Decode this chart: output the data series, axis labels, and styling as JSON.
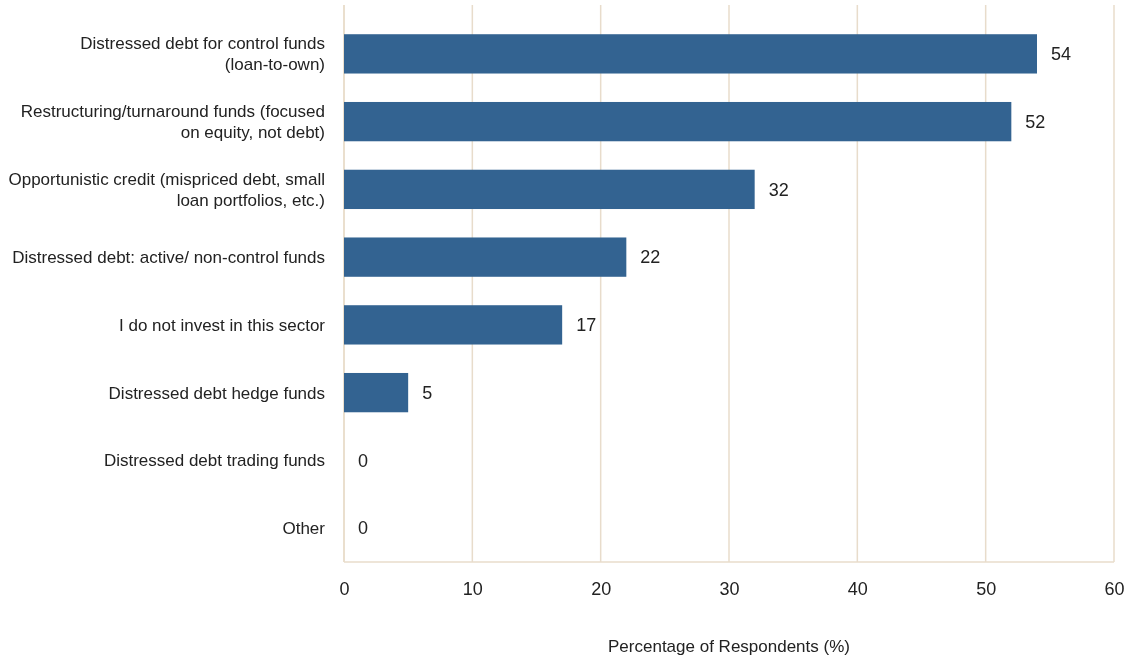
{
  "chart_data": {
    "type": "bar",
    "orientation": "horizontal",
    "categories": [
      "Distressed debt for control funds (loan-to-own)",
      "Restructuring/turnaround funds (focused on equity, not debt)",
      "Opportunistic credit (mispriced debt, small loan portfolios, etc.)",
      "Distressed debt: active/ non-control funds",
      "I do not invest in this sector",
      "Distressed debt hedge funds",
      "Distressed debt trading funds",
      "Other"
    ],
    "values": [
      54,
      52,
      32,
      22,
      17,
      5,
      0,
      0
    ],
    "color": "#336391",
    "xlim": [
      0,
      60
    ],
    "xticks": [
      0,
      10,
      20,
      30,
      40,
      50,
      60
    ],
    "xlabel": "Percentage of Respondents (%)",
    "grid": "x",
    "data_labels": true
  }
}
